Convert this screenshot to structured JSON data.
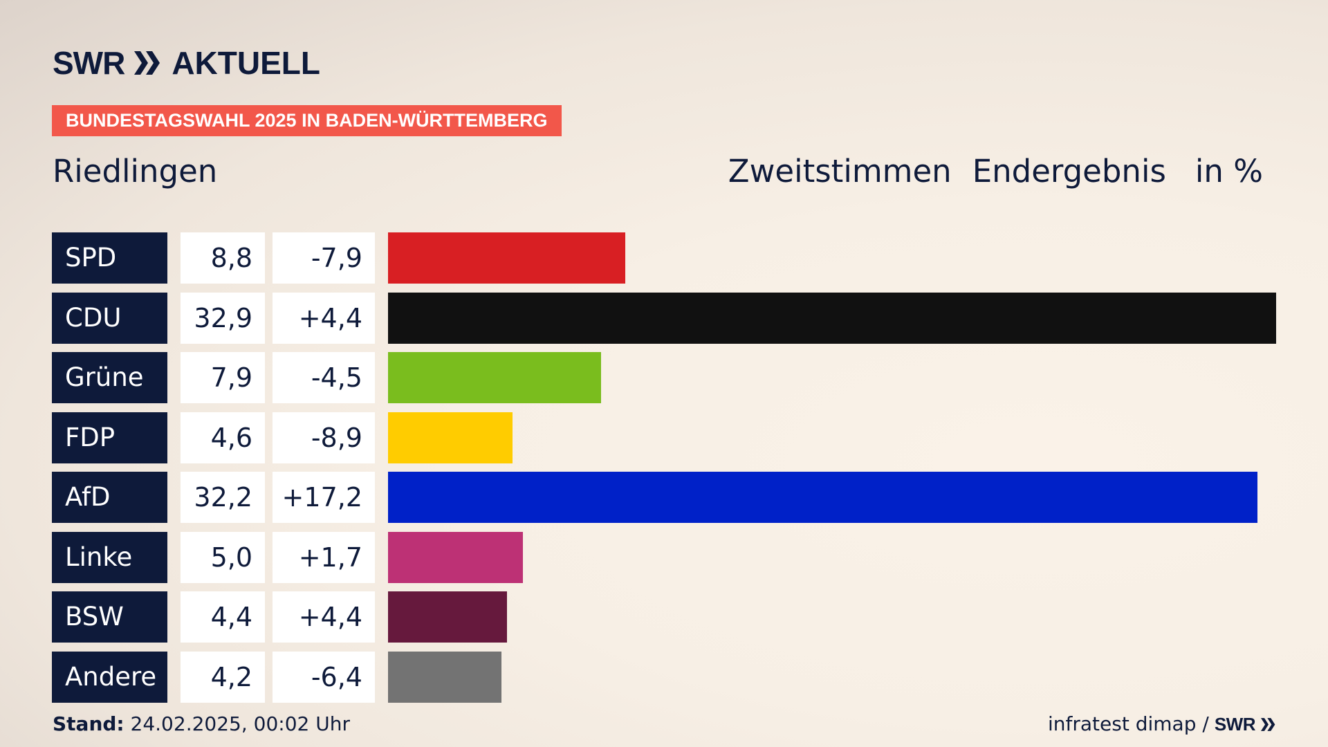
{
  "logo": {
    "brand": "SWR",
    "product": "AKTUELL"
  },
  "banner": "BUNDESTAGSWAHL 2025 IN BADEN-WÜRTTEMBERG",
  "region": "Riedlingen",
  "header": {
    "vote_type": "Zweitstimmen",
    "result_type": "Endergebnis",
    "unit": "in %"
  },
  "rows": [
    {
      "party": "SPD",
      "value": "8,8",
      "diff": "-7,9"
    },
    {
      "party": "CDU",
      "value": "32,9",
      "diff": "+4,4"
    },
    {
      "party": "Grüne",
      "value": "7,9",
      "diff": "-4,5"
    },
    {
      "party": "FDP",
      "value": "4,6",
      "diff": "-8,9"
    },
    {
      "party": "AfD",
      "value": "32,2",
      "diff": "+17,2"
    },
    {
      "party": "Linke",
      "value": "5,0",
      "diff": "+1,7"
    },
    {
      "party": "BSW",
      "value": "4,4",
      "diff": "+4,4"
    },
    {
      "party": "Andere",
      "value": "4,2",
      "diff": "-6,4"
    }
  ],
  "chart_data": {
    "type": "bar",
    "orientation": "horizontal",
    "categories": [
      "SPD",
      "CDU",
      "Grüne",
      "FDP",
      "AfD",
      "Linke",
      "BSW",
      "Andere"
    ],
    "values": [
      8.8,
      32.9,
      7.9,
      4.6,
      32.2,
      5.0,
      4.4,
      4.2
    ],
    "changes": [
      -7.9,
      4.4,
      -4.5,
      -8.9,
      17.2,
      1.7,
      4.4,
      -6.4
    ],
    "colors": [
      "#d81f23",
      "#111111",
      "#7abd1e",
      "#ffcc00",
      "#0021c8",
      "#bd3175",
      "#66193d",
      "#737373"
    ],
    "max_value": 32.9,
    "grid": false
  },
  "footer": {
    "stand_label": "Stand:",
    "stand_value": "24.02.2025, 00:02 Uhr",
    "source": "infratest dimap /",
    "source_brand": "SWR"
  }
}
